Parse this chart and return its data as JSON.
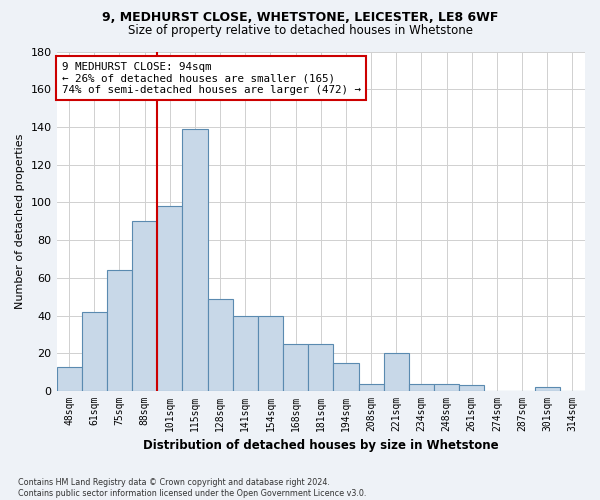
{
  "title_line1": "9, MEDHURST CLOSE, WHETSTONE, LEICESTER, LE8 6WF",
  "title_line2": "Size of property relative to detached houses in Whetstone",
  "xlabel": "Distribution of detached houses by size in Whetstone",
  "ylabel": "Number of detached properties",
  "bar_labels": [
    "48sqm",
    "61sqm",
    "75sqm",
    "88sqm",
    "101sqm",
    "115sqm",
    "128sqm",
    "141sqm",
    "154sqm",
    "168sqm",
    "181sqm",
    "194sqm",
    "208sqm",
    "221sqm",
    "234sqm",
    "248sqm",
    "261sqm",
    "274sqm",
    "287sqm",
    "301sqm",
    "314sqm"
  ],
  "bar_values": [
    13,
    42,
    64,
    90,
    98,
    139,
    49,
    40,
    40,
    25,
    25,
    15,
    4,
    20,
    4,
    4,
    3,
    0,
    0,
    2,
    0
  ],
  "bar_color": "#c8d8e8",
  "bar_edge_color": "#5a8ab0",
  "vline_x": 3.5,
  "vline_color": "#cc0000",
  "annotation_text": "9 MEDHURST CLOSE: 94sqm\n← 26% of detached houses are smaller (165)\n74% of semi-detached houses are larger (472) →",
  "annotation_box_color": "#ffffff",
  "annotation_box_edge": "#cc0000",
  "ylim": [
    0,
    180
  ],
  "yticks": [
    0,
    20,
    40,
    60,
    80,
    100,
    120,
    140,
    160,
    180
  ],
  "footnote": "Contains HM Land Registry data © Crown copyright and database right 2024.\nContains public sector information licensed under the Open Government Licence v3.0.",
  "bg_color": "#eef2f7",
  "plot_bg_color": "#ffffff",
  "grid_color": "#d0d0d0"
}
